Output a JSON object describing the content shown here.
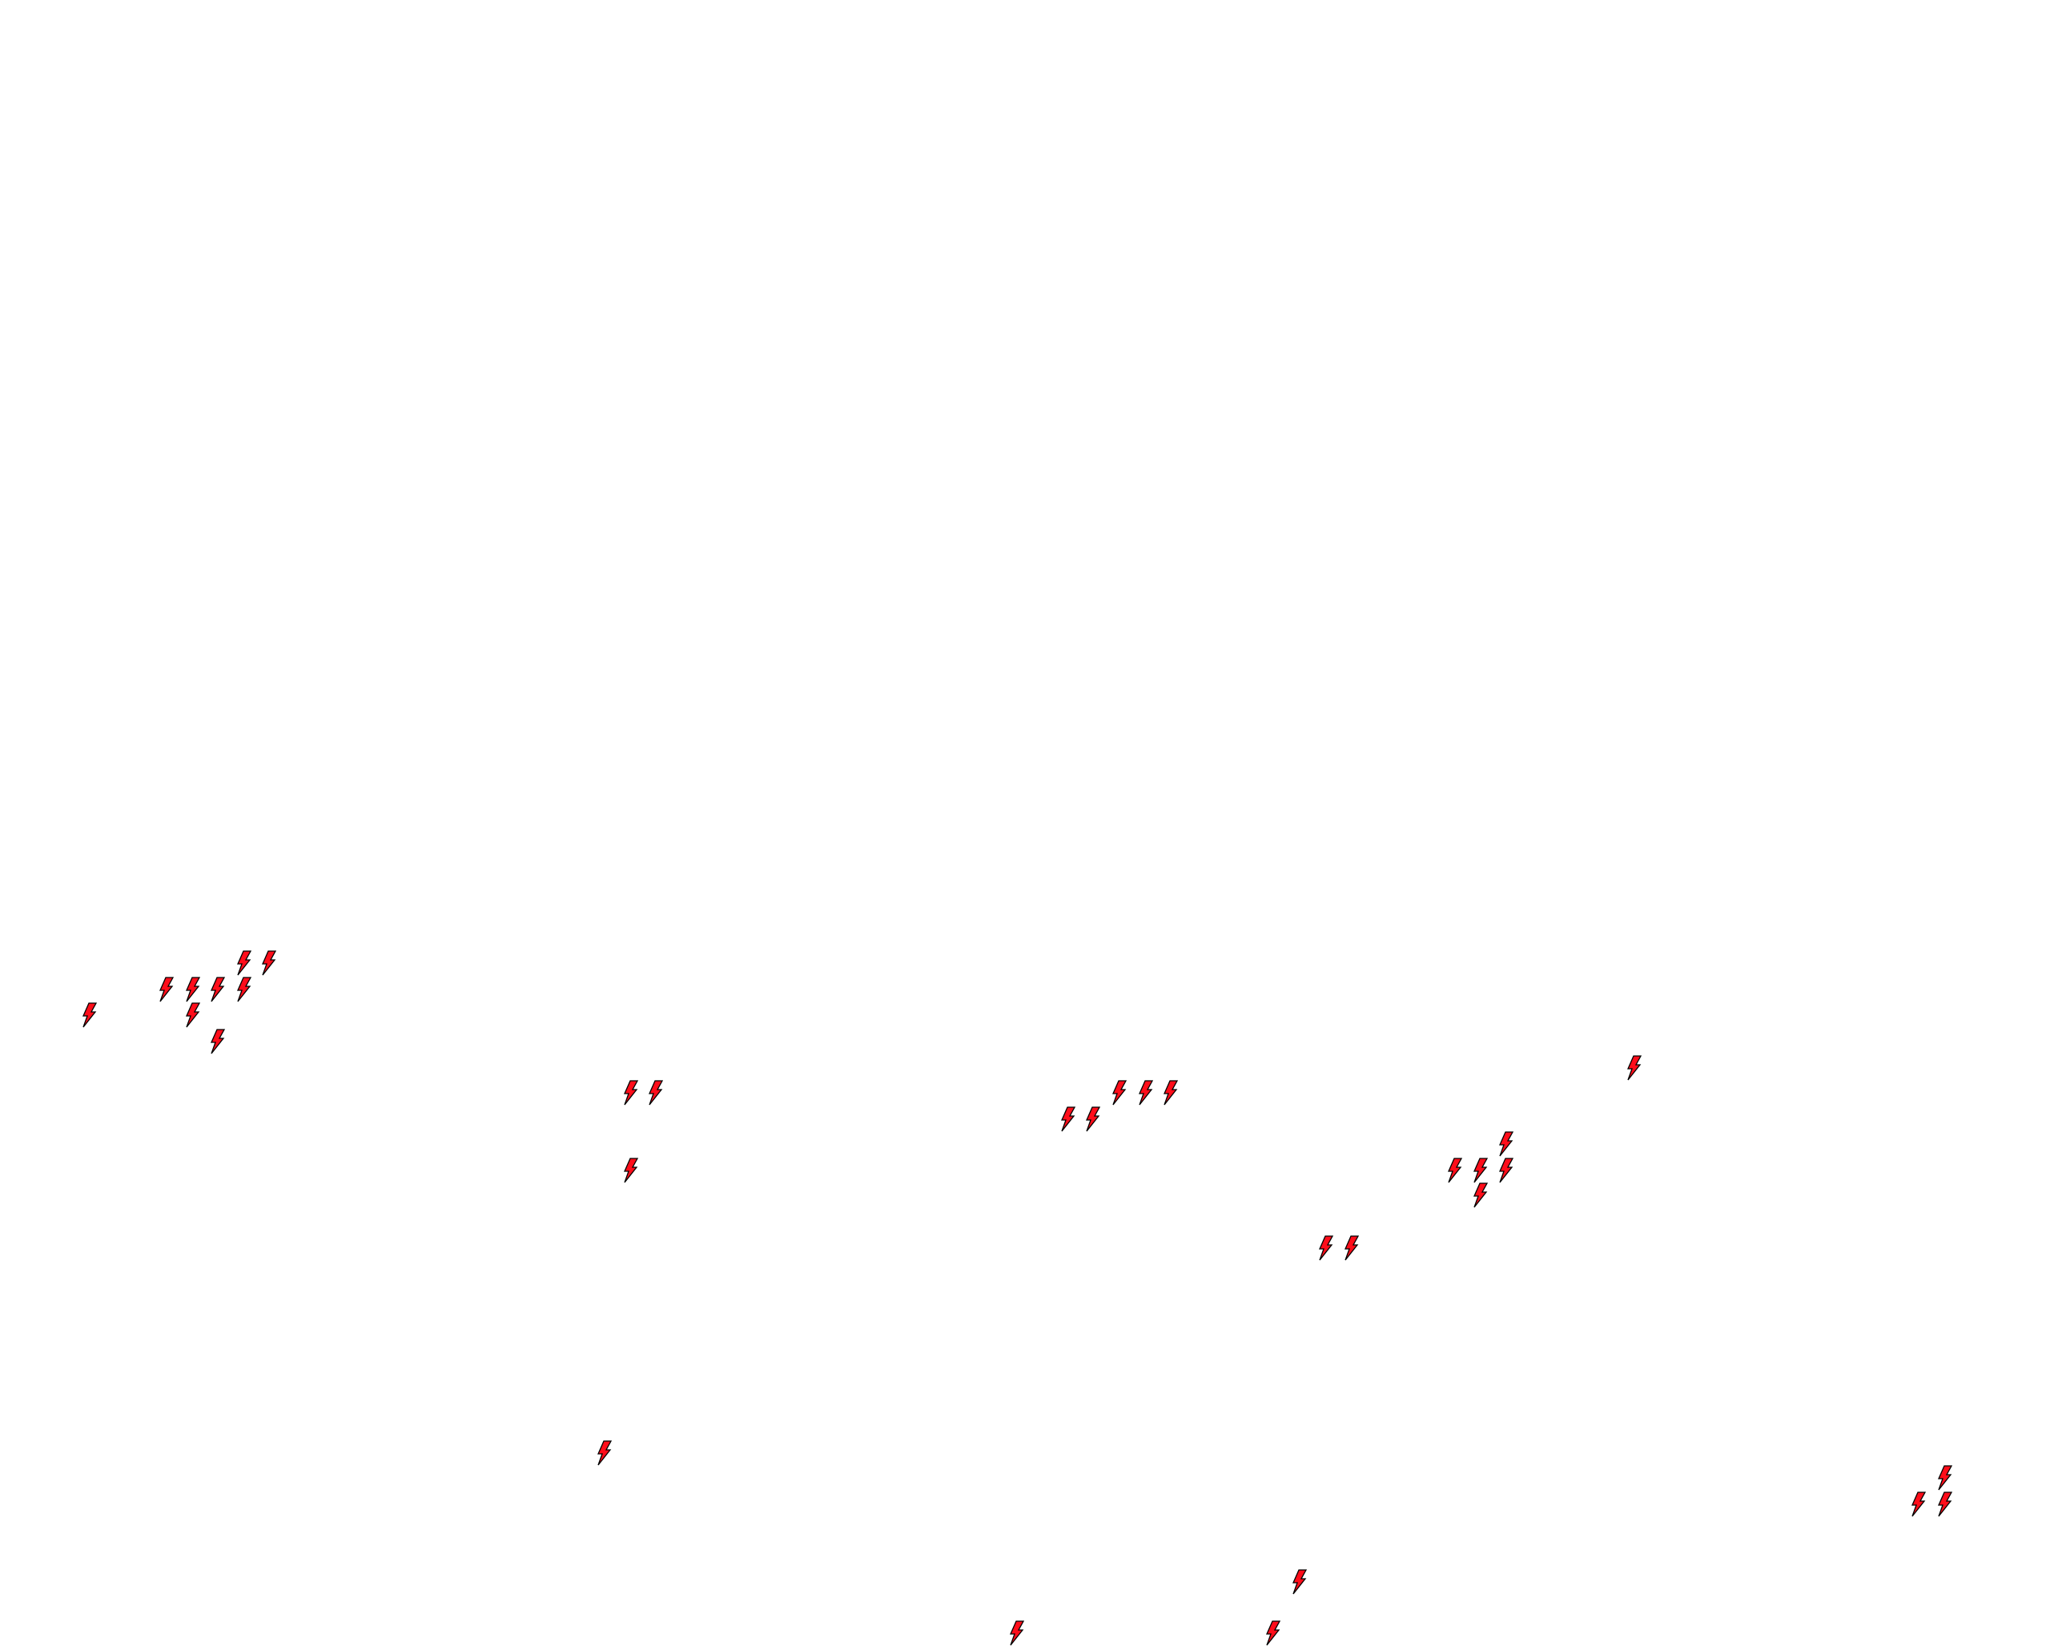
{
  "map": {
    "background_color": "#ffffff",
    "marker_icon": "lightning-bolt-icon",
    "marker_fill_color": "#ff0d1a",
    "marker_stroke_color": "#000000",
    "marker_count": 32
  }
}
